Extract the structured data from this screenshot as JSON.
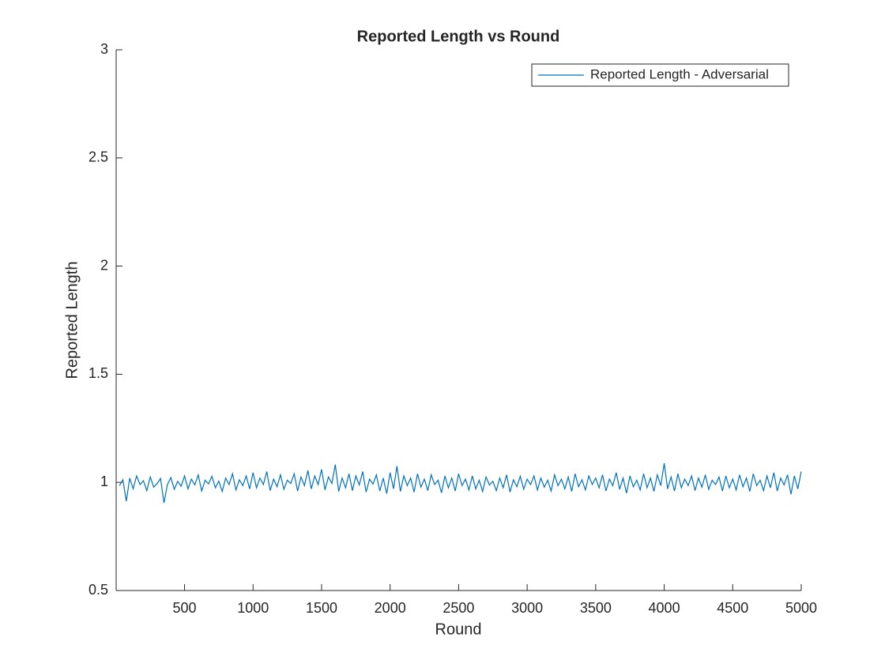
{
  "chart_data": {
    "type": "line",
    "title": "Reported Length vs Round",
    "xlabel": "Round",
    "ylabel": "Reported Length",
    "x": [
      25,
      50,
      75,
      100,
      125,
      150,
      175,
      200,
      225,
      250,
      275,
      300,
      325,
      350,
      375,
      400,
      425,
      450,
      475,
      500,
      525,
      550,
      575,
      600,
      625,
      650,
      675,
      700,
      725,
      750,
      775,
      800,
      825,
      850,
      875,
      900,
      925,
      950,
      975,
      1000,
      1025,
      1050,
      1075,
      1100,
      1125,
      1150,
      1175,
      1200,
      1225,
      1250,
      1275,
      1300,
      1325,
      1350,
      1375,
      1400,
      1425,
      1450,
      1475,
      1500,
      1525,
      1550,
      1575,
      1600,
      1625,
      1650,
      1675,
      1700,
      1725,
      1750,
      1775,
      1800,
      1825,
      1850,
      1875,
      1900,
      1925,
      1950,
      1975,
      2000,
      2025,
      2050,
      2075,
      2100,
      2125,
      2150,
      2175,
      2200,
      2225,
      2250,
      2275,
      2300,
      2325,
      2350,
      2375,
      2400,
      2425,
      2450,
      2475,
      2500,
      2525,
      2550,
      2575,
      2600,
      2625,
      2650,
      2675,
      2700,
      2725,
      2750,
      2775,
      2800,
      2825,
      2850,
      2875,
      2900,
      2925,
      2950,
      2975,
      3000,
      3025,
      3050,
      3075,
      3100,
      3125,
      3150,
      3175,
      3200,
      3225,
      3250,
      3275,
      3300,
      3325,
      3350,
      3375,
      3400,
      3425,
      3450,
      3475,
      3500,
      3525,
      3550,
      3575,
      3600,
      3625,
      3650,
      3675,
      3700,
      3725,
      3750,
      3775,
      3800,
      3825,
      3850,
      3875,
      3900,
      3925,
      3950,
      3975,
      4000,
      4025,
      4050,
      4075,
      4100,
      4125,
      4150,
      4175,
      4200,
      4225,
      4250,
      4275,
      4300,
      4325,
      4350,
      4375,
      4400,
      4425,
      4450,
      4475,
      4500,
      4525,
      4550,
      4575,
      4600,
      4625,
      4650,
      4675,
      4700,
      4725,
      4750,
      4775,
      4800,
      4825,
      4850,
      4875,
      4900,
      4925,
      4950,
      4975,
      5000
    ],
    "series": [
      {
        "name": "Reported Length - Adversarial",
        "color": "#0072BD",
        "values": [
          0.985,
          1.012,
          0.913,
          1.02,
          0.97,
          1.03,
          0.99,
          1.008,
          0.962,
          1.025,
          0.978,
          0.995,
          1.018,
          0.905,
          0.99,
          1.022,
          0.968,
          1.005,
          0.982,
          1.03,
          0.97,
          1.015,
          0.988,
          1.035,
          0.96,
          1.01,
          0.993,
          1.028,
          0.975,
          1.006,
          0.958,
          1.02,
          0.99,
          1.04,
          0.965,
          1.012,
          0.985,
          1.03,
          0.97,
          1.045,
          0.975,
          1.02,
          0.99,
          1.05,
          0.962,
          1.015,
          0.98,
          1.035,
          0.968,
          1.01,
          0.995,
          1.04,
          0.96,
          1.025,
          0.985,
          1.055,
          0.97,
          1.03,
          0.99,
          1.06,
          0.965,
          1.025,
          0.995,
          1.082,
          0.958,
          1.02,
          0.975,
          1.04,
          0.962,
          1.03,
          0.988,
          1.05,
          0.955,
          1.015,
          0.992,
          1.035,
          0.96,
          1.02,
          0.948,
          1.045,
          0.97,
          1.075,
          0.958,
          1.03,
          0.985,
          1.02,
          0.955,
          1.04,
          0.978,
          1.015,
          0.962,
          1.035,
          0.99,
          1.01,
          0.952,
          1.03,
          0.975,
          1.02,
          0.96,
          1.04,
          0.985,
          1.015,
          0.965,
          1.03,
          0.97,
          1.01,
          0.958,
          1.025,
          0.988,
          1.005,
          0.962,
          1.02,
          0.975,
          1.035,
          0.955,
          1.012,
          0.98,
          1.028,
          0.968,
          1.015,
          0.99,
          1.03,
          0.965,
          1.02,
          0.978,
          1.01,
          0.96,
          1.035,
          0.985,
          1.015,
          0.97,
          1.025,
          0.958,
          1.04,
          0.98,
          1.012,
          0.965,
          1.03,
          0.99,
          1.02,
          0.975,
          1.035,
          0.96,
          1.015,
          0.985,
          1.045,
          0.968,
          1.02,
          0.95,
          1.03,
          0.98,
          1.01,
          0.965,
          1.04,
          0.975,
          1.02,
          0.958,
          1.035,
          0.985,
          1.088,
          0.97,
          1.025,
          0.96,
          1.04,
          0.975,
          1.015,
          0.985,
          1.03,
          0.962,
          1.02,
          0.978,
          1.035,
          0.968,
          1.01,
          0.99,
          1.025,
          0.96,
          1.03,
          0.975,
          1.015,
          0.965,
          1.035,
          0.98,
          1.02,
          0.958,
          1.04,
          0.985,
          1.01,
          0.962,
          1.03,
          0.975,
          1.045,
          0.96,
          1.02,
          0.988,
          1.035,
          0.945,
          1.03,
          0.97,
          1.05
        ]
      }
    ],
    "xlim": [
      1,
      5000
    ],
    "xticks": [
      500,
      1000,
      1500,
      2000,
      2500,
      3000,
      3500,
      4000,
      4500,
      5000
    ],
    "ylim": [
      0.5,
      3
    ],
    "yticks": [
      0.5,
      1,
      1.5,
      2,
      2.5,
      3
    ],
    "legend": "top-right"
  }
}
